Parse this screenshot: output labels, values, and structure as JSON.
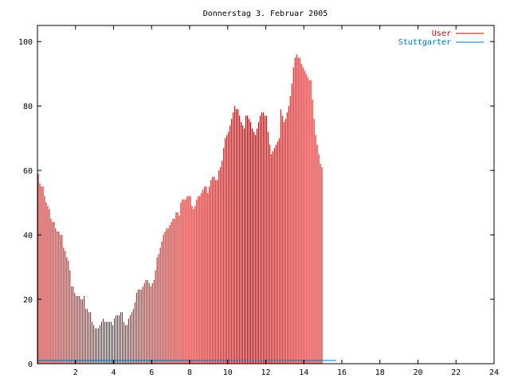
{
  "chart_data": {
    "type": "bar",
    "title": "Donnerstag 3. Februar 2005",
    "xlabel": "",
    "ylabel": "",
    "xlim": [
      0,
      24
    ],
    "ylim": [
      0,
      105
    ],
    "x_ticks": [
      "2",
      "4",
      "6",
      "8",
      "10",
      "12",
      "14",
      "16",
      "18",
      "20",
      "22",
      "24"
    ],
    "y_ticks": [
      "0",
      "20",
      "40",
      "60",
      "80",
      "100"
    ],
    "grid": false,
    "legend_position": "top-right",
    "colors": {
      "user": "#cc0000",
      "stuttgarter": "#0070c0"
    },
    "series": [
      {
        "name": "User",
        "x_start": 0,
        "x_step": 0.0833,
        "values": [
          59,
          56,
          55,
          55,
          52,
          50,
          49,
          48,
          45,
          44,
          44,
          42,
          41,
          41,
          40,
          40,
          36,
          35,
          33,
          32,
          29,
          24,
          24,
          22,
          21,
          21,
          21,
          20,
          20,
          21,
          17,
          17,
          16,
          16,
          13,
          12,
          11,
          11,
          11,
          12,
          13,
          14,
          13,
          13,
          13,
          13,
          13,
          12,
          14,
          15,
          15,
          15,
          16,
          16,
          13,
          12,
          12,
          14,
          15,
          16,
          17,
          19,
          22,
          23,
          23,
          23,
          24,
          25,
          26,
          26,
          25,
          24,
          25,
          26,
          29,
          33,
          34,
          36,
          38,
          40,
          41,
          42,
          42,
          43,
          44,
          45,
          45,
          47,
          47,
          46,
          50,
          51,
          51,
          51,
          52,
          52,
          52,
          49,
          48,
          49,
          51,
          52,
          52,
          53,
          54,
          55,
          55,
          53,
          55,
          57,
          58,
          58,
          57,
          57,
          60,
          61,
          63,
          67,
          70,
          71,
          72,
          74,
          76,
          78,
          80,
          79,
          79,
          77,
          75,
          74,
          73,
          77,
          77,
          76,
          75,
          73,
          72,
          71,
          73,
          75,
          77,
          78,
          78,
          77,
          77,
          72,
          68,
          65,
          66,
          67,
          68,
          69,
          70,
          79,
          77,
          75,
          76,
          78,
          80,
          83,
          87,
          92,
          95,
          96,
          95,
          95,
          93,
          92,
          91,
          90,
          89,
          88,
          88,
          82,
          76,
          71,
          68,
          65,
          62,
          61
        ]
      },
      {
        "name": "Stuttgarter",
        "x_start": 0,
        "x_step": 0.0833,
        "values": [
          1,
          1,
          1,
          1,
          1,
          1,
          1,
          1,
          1,
          1,
          1,
          1,
          1,
          1,
          1,
          1,
          1,
          1,
          1,
          1,
          1,
          1,
          1,
          1,
          1,
          1,
          1,
          1,
          1,
          1,
          1,
          1,
          1,
          1,
          1,
          1,
          1,
          1,
          1,
          1,
          1,
          1,
          1,
          1,
          1,
          1,
          1,
          1,
          1,
          1,
          1,
          1,
          1,
          1,
          1,
          1,
          1,
          1,
          1,
          1,
          1,
          1,
          1,
          1,
          1,
          1,
          1,
          1,
          1,
          1,
          1,
          1,
          1,
          1,
          1,
          1,
          1,
          1,
          1,
          1,
          1,
          1,
          1,
          1,
          1,
          1,
          1,
          1,
          1,
          1,
          1,
          1,
          1,
          1,
          1,
          1,
          1,
          1,
          1,
          1,
          1,
          1,
          1,
          1,
          1,
          1,
          1,
          1,
          1,
          1,
          1,
          1,
          1,
          1,
          1,
          1,
          1,
          1,
          1,
          1,
          1,
          1,
          1,
          1,
          1,
          1,
          1,
          1,
          1,
          1,
          1,
          1,
          1,
          1,
          1,
          1,
          1,
          1,
          1,
          1,
          1,
          1,
          1,
          1,
          1,
          1,
          1,
          1,
          1,
          1,
          1,
          1,
          1,
          1,
          1,
          1,
          1,
          1,
          1,
          1,
          1,
          1,
          1,
          1,
          1,
          1,
          1,
          1,
          1,
          1,
          1,
          1,
          1,
          1,
          1,
          1,
          1,
          1,
          1,
          1,
          1,
          1,
          1,
          1,
          1,
          1,
          1,
          1
        ]
      }
    ]
  }
}
